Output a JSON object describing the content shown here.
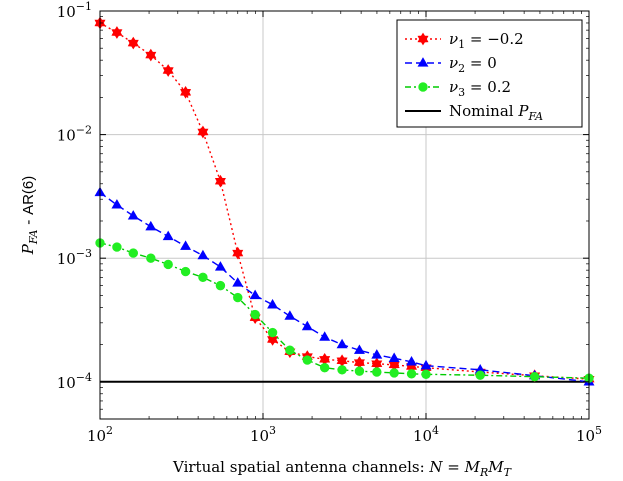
{
  "chart_data": {
    "type": "line",
    "title": "",
    "xlabel": "Virtual spatial antenna channels: N = M_R M_T",
    "ylabel": "P_FA - AR(6)",
    "x_scale": "log",
    "y_scale": "log",
    "xlim": [
      100,
      100000
    ],
    "ylim": [
      5e-05,
      0.1
    ],
    "grid": "major",
    "legend_position": "top-right",
    "x_ticks": [
      {
        "value": 100,
        "base": "10",
        "exp": "2"
      },
      {
        "value": 1000,
        "base": "10",
        "exp": "3"
      },
      {
        "value": 10000,
        "base": "10",
        "exp": "4"
      },
      {
        "value": 100000,
        "base": "10",
        "exp": "5"
      }
    ],
    "y_ticks": [
      {
        "value": 0.0001,
        "base": "10",
        "exp": "−4"
      },
      {
        "value": 0.001,
        "base": "10",
        "exp": "−3"
      },
      {
        "value": 0.01,
        "base": "10",
        "exp": "−2"
      },
      {
        "value": 0.1,
        "base": "10",
        "exp": "−1"
      }
    ],
    "series": [
      {
        "name": "ν1 = −0.2",
        "legend": {
          "sym": "ν",
          "sub": "1",
          "rest": " = −0.2"
        },
        "color": "#ff0000",
        "marker_color": "#ff0000",
        "dash": "2,3",
        "marker": "star",
        "x": [
          100,
          127,
          160,
          205,
          262,
          335,
          428,
          548,
          700,
          895,
          1145,
          1462,
          1870,
          2390,
          3055,
          3905,
          4990,
          6380,
          8150,
          10000,
          21500,
          46400,
          100000
        ],
        "y": [
          0.08,
          0.067,
          0.055,
          0.044,
          0.033,
          0.022,
          0.0105,
          0.0042,
          0.0011,
          0.00033,
          0.00022,
          0.000175,
          0.00016,
          0.000152,
          0.000148,
          0.000143,
          0.00014,
          0.000137,
          0.000133,
          0.00013,
          0.00012,
          0.000112,
          0.000105
        ]
      },
      {
        "name": "ν2 = 0",
        "legend": {
          "sym": "ν",
          "sub": "2",
          "rest": " = 0"
        },
        "color": "#0000ff",
        "marker_color": "#0000ff",
        "dash": "7,4",
        "marker": "triangle",
        "x": [
          100,
          127,
          160,
          205,
          262,
          335,
          428,
          548,
          700,
          895,
          1145,
          1462,
          1870,
          2390,
          3055,
          3905,
          4990,
          6380,
          8150,
          10000,
          21500,
          46400,
          100000
        ],
        "y": [
          0.0034,
          0.0027,
          0.0022,
          0.0018,
          0.0015,
          0.00125,
          0.00105,
          0.00085,
          0.00063,
          0.0005,
          0.00042,
          0.00034,
          0.00028,
          0.00023,
          0.0002,
          0.00018,
          0.000165,
          0.000155,
          0.000145,
          0.000135,
          0.000125,
          0.000112,
          0.0001
        ]
      },
      {
        "name": "ν3 = 0.2",
        "legend": {
          "sym": "ν",
          "sub": "3",
          "rest": " = 0.2"
        },
        "color": "#00cc00",
        "marker_color": "#22ee22",
        "dash": "6,3,2,3",
        "marker": "circle",
        "x": [
          100,
          127,
          160,
          205,
          262,
          335,
          428,
          548,
          700,
          895,
          1145,
          1462,
          1870,
          2390,
          3055,
          3905,
          4990,
          6380,
          8150,
          10000,
          21500,
          46400,
          100000
        ],
        "y": [
          0.00133,
          0.00123,
          0.0011,
          0.001,
          0.00089,
          0.00078,
          0.0007,
          0.0006,
          0.00048,
          0.00035,
          0.00025,
          0.00018,
          0.00015,
          0.00013,
          0.000125,
          0.000122,
          0.00012,
          0.000118,
          0.000116,
          0.000115,
          0.000113,
          0.00011,
          0.000107
        ]
      }
    ],
    "reference_line": {
      "name": "Nominal P_FA",
      "legend": {
        "text": "Nominal ",
        "sym": "P",
        "sub": "FA"
      },
      "y": 0.0001,
      "color": "#000000"
    }
  }
}
